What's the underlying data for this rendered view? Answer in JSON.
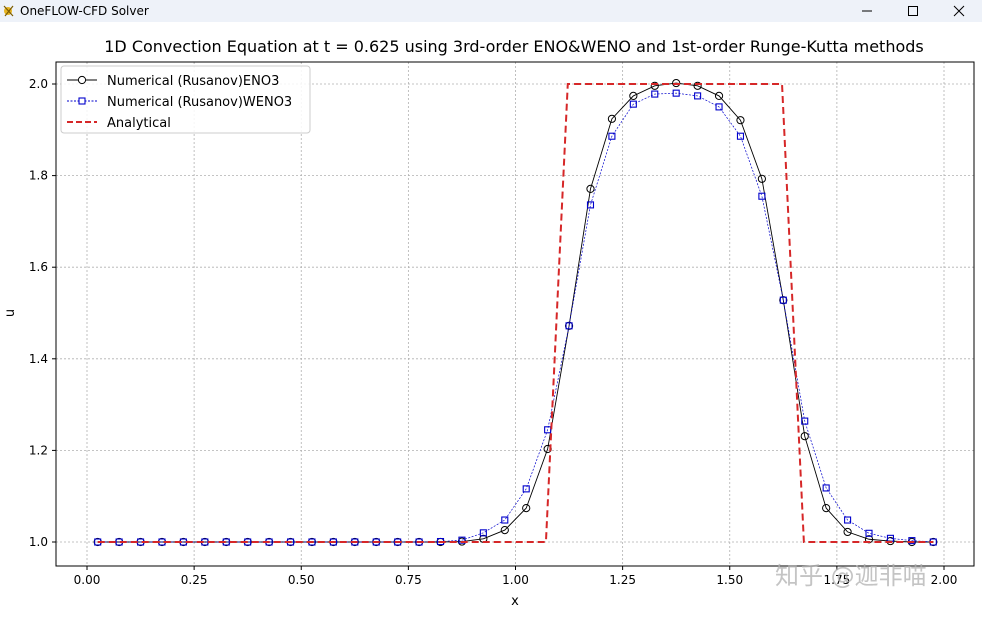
{
  "window": {
    "title": "OneFLOW-CFD Solver",
    "controls": [
      "minimize",
      "maximize",
      "close"
    ]
  },
  "watermark": "知乎 @迦非喵",
  "chart_data": {
    "type": "line",
    "title": "1D Convection Equation at t = 0.625 using 3rd-order ENO&WENO and 1st-order Runge-Kutta methods",
    "xlabel": "x",
    "ylabel": "u",
    "xlim": [
      -0.075,
      2.075
    ],
    "ylim": [
      0.95,
      2.05
    ],
    "xticks": [
      0.0,
      0.25,
      0.5,
      0.75,
      1.0,
      1.25,
      1.5,
      1.75,
      2.0
    ],
    "xtick_labels": [
      "0.00",
      "0.25",
      "0.50",
      "0.75",
      "1.00",
      "1.25",
      "1.50",
      "1.75",
      "2.00"
    ],
    "yticks": [
      1.0,
      1.2,
      1.4,
      1.6,
      1.8,
      2.0
    ],
    "ytick_labels": [
      "1.0",
      "1.2",
      "1.4",
      "1.6",
      "1.8",
      "2.0"
    ],
    "grid": true,
    "legend_position": "upper left",
    "x": [
      0.025,
      0.075,
      0.125,
      0.175,
      0.225,
      0.275,
      0.325,
      0.375,
      0.425,
      0.475,
      0.525,
      0.575,
      0.625,
      0.675,
      0.725,
      0.775,
      0.825,
      0.875,
      0.925,
      0.975,
      1.025,
      1.075,
      1.125,
      1.175,
      1.225,
      1.275,
      1.325,
      1.375,
      1.425,
      1.475,
      1.525,
      1.575,
      1.625,
      1.675,
      1.725,
      1.775,
      1.825,
      1.875,
      1.925,
      1.975
    ],
    "series": [
      {
        "name": "Numerical (Rusanov)ENO3",
        "color": "#000000",
        "linestyle": "solid",
        "marker": "circle",
        "values": [
          1.0,
          1.0,
          1.0,
          1.0,
          1.0,
          1.0,
          1.0,
          1.0,
          1.0,
          1.0,
          1.0,
          1.0,
          1.0,
          1.0,
          1.0,
          1.0,
          1.0,
          1.001,
          1.007,
          1.026,
          1.074,
          1.203,
          1.472,
          1.771,
          1.924,
          1.974,
          1.996,
          2.002,
          1.996,
          1.974,
          1.921,
          1.793,
          1.528,
          1.231,
          1.074,
          1.022,
          1.006,
          1.002,
          1.0,
          1.0
        ]
      },
      {
        "name": "Numerical (Rusanov)WENO3",
        "color": "#0000cc",
        "linestyle": "dotted",
        "marker": "square",
        "values": [
          1.0,
          1.0,
          1.0,
          1.0,
          1.0,
          1.0,
          1.0,
          1.0,
          1.0,
          1.0,
          1.0,
          1.0,
          1.0,
          1.0,
          1.0,
          1.0,
          1.001,
          1.004,
          1.02,
          1.048,
          1.116,
          1.245,
          1.472,
          1.736,
          1.886,
          1.956,
          1.978,
          1.98,
          1.974,
          1.95,
          1.886,
          1.755,
          1.528,
          1.264,
          1.118,
          1.048,
          1.019,
          1.008,
          1.003,
          1.0
        ]
      },
      {
        "name": "Analytical",
        "color": "#d62728",
        "linestyle": "dashed",
        "marker": "none",
        "x": [
          0.025,
          1.071,
          1.122,
          1.622,
          1.673,
          1.975
        ],
        "values": [
          1.0,
          1.0,
          2.0,
          2.0,
          1.0,
          1.0
        ]
      }
    ]
  }
}
